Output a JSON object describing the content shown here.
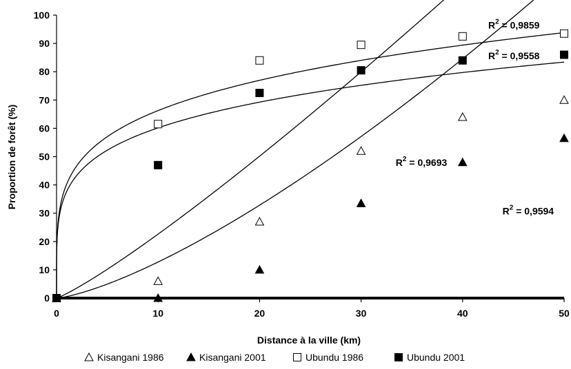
{
  "chart_data": {
    "type": "scatter",
    "xlabel": "Distance à la ville (km)",
    "ylabel": "Proportion de forêt (%)",
    "xlim": [
      0,
      50
    ],
    "ylim": [
      0,
      100
    ],
    "xticks": [
      "0",
      "10",
      "20",
      "30",
      "40",
      "50"
    ],
    "yticks": [
      "0",
      "10",
      "20",
      "30",
      "40",
      "50",
      "60",
      "70",
      "80",
      "90",
      "100"
    ],
    "grid": false,
    "legend_position": "bottom",
    "series": [
      {
        "name": "Kisangani 1986",
        "marker": "open-triangle",
        "x": [
          0,
          10,
          20,
          30,
          40,
          50
        ],
        "y": [
          0,
          6,
          27,
          52,
          64,
          70
        ],
        "r2_label": "R",
        "r2_sup": "2",
        "r2_value": " = 0,9693",
        "fit": "power",
        "fit_params": {
          "a": 1.6,
          "b": 1.15
        }
      },
      {
        "name": "Kisangani 2001",
        "marker": "filled-triangle",
        "x": [
          0,
          10,
          20,
          30,
          40,
          50
        ],
        "y": [
          0,
          0,
          10,
          33.5,
          48,
          56.5
        ],
        "r2_label": "R",
        "r2_sup": "2",
        "r2_value": " = 0,9594",
        "fit": "power",
        "fit_params": {
          "a": 0.55,
          "b": 1.365
        }
      },
      {
        "name": "Ubundu 1986",
        "marker": "open-square",
        "x": [
          0,
          10,
          20,
          30,
          40,
          50
        ],
        "y": [
          0,
          61.5,
          84,
          89.5,
          92.5,
          93.5
        ],
        "r2_label": "R",
        "r2_sup": "2",
        "r2_value": " = 0,9859",
        "fit": "power",
        "fit_params": {
          "a": 40.3,
          "b": 0.216
        }
      },
      {
        "name": "Ubundu 2001",
        "marker": "filled-square",
        "x": [
          0,
          10,
          20,
          30,
          40,
          50
        ],
        "y": [
          0,
          47,
          72.5,
          80.5,
          84,
          86
        ],
        "r2_label": "R",
        "r2_sup": "2",
        "r2_value": " = 0,9558",
        "fit": "power",
        "fit_params": {
          "a": 37.7,
          "b": 0.203
        }
      }
    ]
  }
}
